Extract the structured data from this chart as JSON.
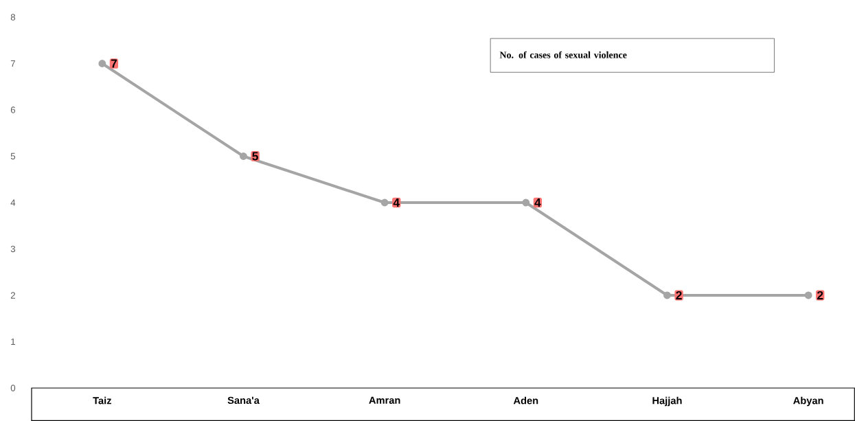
{
  "chart_data": {
    "type": "line",
    "categories": [
      "Taiz",
      "Sana'a",
      "Amran",
      "Aden",
      "Hajjah",
      "Abyan"
    ],
    "series": [
      {
        "name": "No. of cases of sexual violence",
        "color": "#a5a5a5",
        "values": [
          7,
          5,
          4,
          4,
          2,
          2
        ]
      }
    ],
    "ylim": [
      0,
      8
    ],
    "yticks": [
      0,
      1,
      2,
      3,
      4,
      5,
      6,
      7,
      8
    ],
    "grid": false,
    "legend": "top right",
    "marker": "circle",
    "line_style": "solid",
    "data_labels": true
  }
}
